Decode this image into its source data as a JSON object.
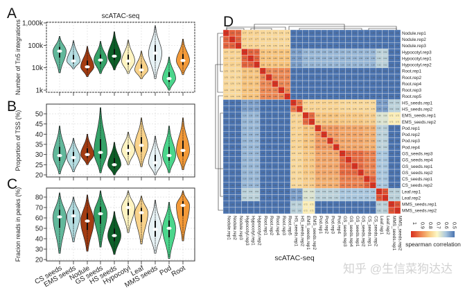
{
  "figure": {
    "panel_letters": [
      "A",
      "B",
      "C",
      "D"
    ],
    "watermark": "知乎 @生信菜狗达达"
  },
  "categories": [
    "CS seeds",
    "EMS seeds",
    "Nodule",
    "GS seeds",
    "HS seeds",
    "Hypocotyl",
    "Leaf",
    "MMS seeds",
    "Pod",
    "Root"
  ],
  "colors": [
    "#62b89b",
    "#b5dde1",
    "#a33c12",
    "#35a268",
    "#0d5f28",
    "#fff4c2",
    "#f8d28a",
    "#e8f3f6",
    "#4bd68c",
    "#f39a39"
  ],
  "chart_data": [
    {
      "type": "violin",
      "title": "scATAC-seq",
      "ylabel": "Number of Tn5 integrations",
      "yscale": "log",
      "ylim": [
        1000,
        1000000
      ],
      "yticks": [
        1000,
        10000,
        100000,
        1000000
      ],
      "ytick_labels": [
        "1k",
        "10k",
        "100k",
        "1,000k"
      ],
      "grid": true,
      "median": [
        55000,
        20000,
        11000,
        22000,
        33000,
        20000,
        8000,
        45000,
        3300,
        21000
      ],
      "min": [
        6000,
        9000,
        4000,
        5500,
        8000,
        5500,
        3200,
        3300,
        1000,
        5000
      ],
      "max": [
        250000,
        160000,
        90000,
        150000,
        400000,
        170000,
        55000,
        750000,
        30000,
        190000
      ]
    },
    {
      "type": "violin",
      "ylabel": "Proportion of TSS (%)",
      "ylim": [
        20,
        50
      ],
      "yticks": [
        20,
        25,
        30,
        35,
        40,
        45,
        50
      ],
      "ytick_labels": [
        "20",
        "25",
        "30",
        "35",
        "40",
        "45",
        "50"
      ],
      "grid": true,
      "median": [
        29.5,
        28.5,
        30,
        31,
        25,
        32,
        34.5,
        26,
        29.5,
        32
      ],
      "min": [
        20.5,
        21.5,
        25,
        21,
        20,
        25,
        24,
        20,
        21,
        22.5
      ],
      "max": [
        44,
        38,
        40,
        53,
        36,
        41,
        48,
        39,
        44,
        48
      ]
    },
    {
      "type": "violin",
      "ylabel": "Fracion reads in peaks (%)",
      "ylim": [
        20,
        80
      ],
      "yticks": [
        20,
        30,
        40,
        50,
        60,
        70,
        80
      ],
      "ytick_labels": [
        "20",
        "30",
        "40",
        "50",
        "60",
        "70",
        "80"
      ],
      "grid": true,
      "median": [
        61,
        62,
        57,
        64,
        43,
        70,
        65,
        49,
        50,
        72
      ],
      "min": [
        26,
        37,
        28,
        32,
        25,
        46,
        35,
        26,
        21,
        38
      ],
      "max": [
        84,
        80,
        82,
        86,
        66,
        86,
        81,
        77,
        75,
        86
      ]
    },
    {
      "type": "heatmap",
      "xlabel": "scATAC-seq",
      "labels": [
        "Nodule.rep1",
        "Nodule.rep2",
        "Nodule.rep3",
        "Hypocotyl.rep3",
        "Hypocotyl.rep1",
        "Hypocotyl.rep2",
        "Root.rep1",
        "Root.rep2",
        "Root.rep4",
        "Root.rep3",
        "Root.rep5",
        "HS_seeds.rep1",
        "HS_seeds.rep2",
        "EMS_seeds.rep1",
        "EMS_seeds.rep2",
        "Pod.rep1",
        "Pod.rep2",
        "Pod.rep3",
        "Pod.rep4",
        "GS_seeds.rep3",
        "GS_seeds.rep4",
        "GS_seeds.rep1",
        "GS_seeds.rep2",
        "CS_seeds.rep1",
        "CS_seeds.rep2",
        "Leaf.rep1",
        "Leaf.rep2",
        "MMS_seeds.rep1",
        "MMS_seeds.rep2"
      ],
      "groups": [
        "Nodule",
        "Hypocotyl",
        "Root",
        "HS_seeds",
        "EMS_seeds",
        "Pod",
        "GS_seeds",
        "CS_seeds",
        "Leaf",
        "MMS_seeds"
      ],
      "group_sizes": [
        3,
        3,
        5,
        2,
        2,
        4,
        4,
        2,
        2,
        2
      ],
      "block_correlation": [
        [
          0.93,
          0.77,
          0.76,
          0.5,
          0.5,
          0.5,
          0.5,
          0.5,
          0.5,
          0.5
        ],
        [
          0.77,
          0.93,
          0.8,
          0.55,
          0.58,
          0.58,
          0.58,
          0.58,
          0.62,
          0.5
        ],
        [
          0.76,
          0.8,
          0.88,
          0.5,
          0.5,
          0.5,
          0.5,
          0.5,
          0.5,
          0.5
        ],
        [
          0.5,
          0.55,
          0.5,
          0.9,
          0.77,
          0.77,
          0.76,
          0.76,
          0.55,
          0.62
        ],
        [
          0.5,
          0.58,
          0.5,
          0.77,
          0.92,
          0.8,
          0.79,
          0.78,
          0.66,
          0.72
        ],
        [
          0.5,
          0.58,
          0.5,
          0.77,
          0.8,
          0.86,
          0.84,
          0.83,
          0.62,
          0.5
        ],
        [
          0.5,
          0.58,
          0.5,
          0.76,
          0.79,
          0.84,
          0.92,
          0.89,
          0.6,
          0.5
        ],
        [
          0.5,
          0.58,
          0.5,
          0.76,
          0.78,
          0.83,
          0.89,
          0.93,
          0.6,
          0.5
        ],
        [
          0.5,
          0.62,
          0.5,
          0.55,
          0.66,
          0.62,
          0.6,
          0.6,
          0.95,
          0.62
        ],
        [
          0.5,
          0.5,
          0.5,
          0.62,
          0.72,
          0.5,
          0.5,
          0.5,
          0.62,
          0.95
        ]
      ],
      "legend": {
        "title": "spearman correlation",
        "ticks": [
          "1",
          "0.9",
          "0.8",
          "0.7",
          "0.6",
          "0.5"
        ],
        "range": [
          0.5,
          1
        ],
        "colors": [
          "#4a73b0",
          "#a9c7df",
          "#fdf8c6",
          "#f8c47c",
          "#ec7a4a",
          "#d7301f"
        ]
      }
    }
  ]
}
